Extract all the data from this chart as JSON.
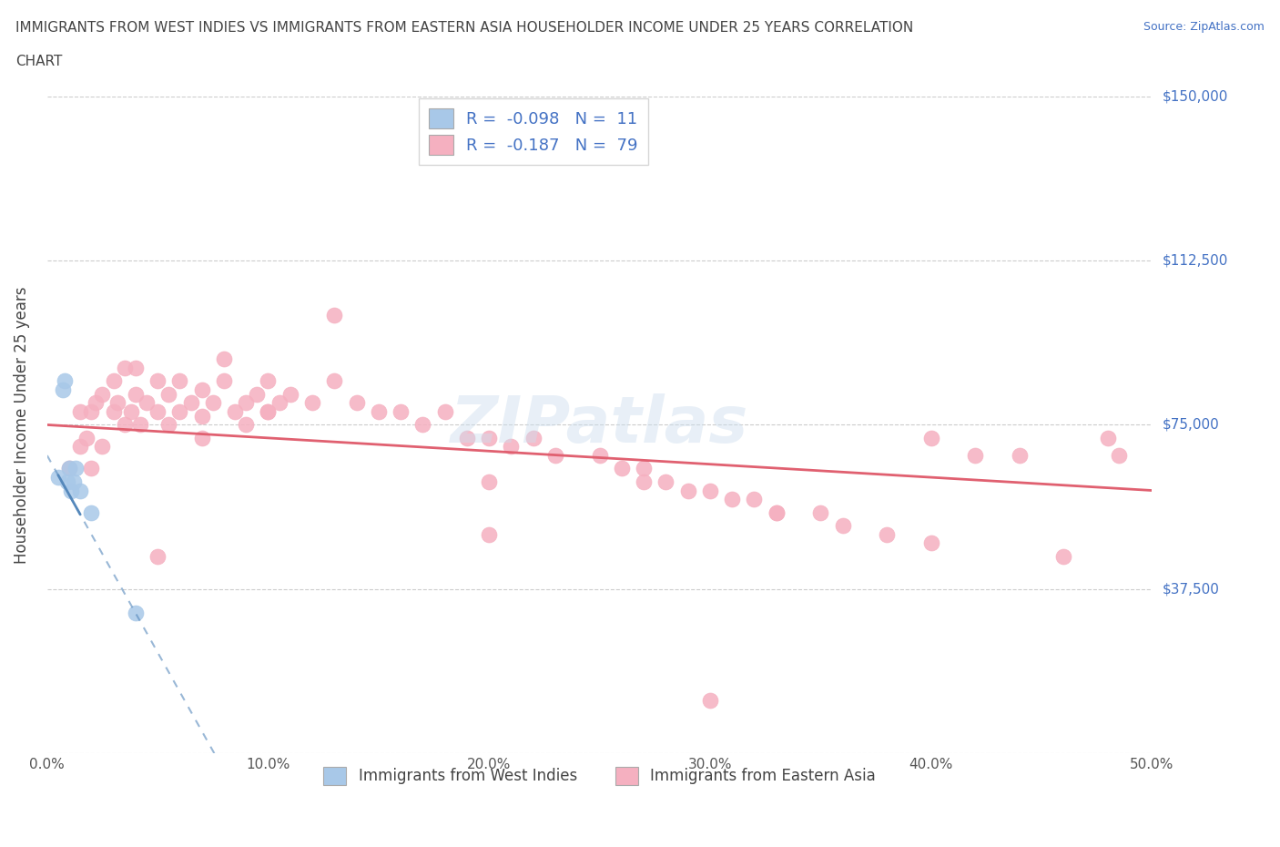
{
  "title_line1": "IMMIGRANTS FROM WEST INDIES VS IMMIGRANTS FROM EASTERN ASIA HOUSEHOLDER INCOME UNDER 25 YEARS CORRELATION",
  "title_line2": "CHART",
  "source": "Source: ZipAtlas.com",
  "ylabel": "Householder Income Under 25 years",
  "xlim": [
    0.0,
    0.5
  ],
  "ylim": [
    0,
    150000
  ],
  "yticks": [
    0,
    37500,
    75000,
    112500,
    150000
  ],
  "ytick_labels": [
    "",
    "$37,500",
    "$75,000",
    "$112,500",
    "$150,000"
  ],
  "xticks": [
    0.0,
    0.1,
    0.2,
    0.3,
    0.4,
    0.5
  ],
  "xtick_labels": [
    "0.0%",
    "10.0%",
    "20.0%",
    "30.0%",
    "40.0%",
    "50.0%"
  ],
  "grid_color": "#cccccc",
  "background_color": "#ffffff",
  "west_indies_color": "#a8c8e8",
  "east_asia_color": "#f5b0c0",
  "west_indies_R": -0.098,
  "west_indies_N": 11,
  "east_asia_R": -0.187,
  "east_asia_N": 79,
  "legend_label_1": "Immigrants from West Indies",
  "legend_label_2": "Immigrants from Eastern Asia",
  "wi_line_color": "#5588bb",
  "ea_line_color": "#e06070",
  "west_indies_x": [
    0.005,
    0.007,
    0.008,
    0.009,
    0.01,
    0.011,
    0.012,
    0.013,
    0.015,
    0.02,
    0.04
  ],
  "west_indies_y": [
    63000,
    83000,
    85000,
    62000,
    65000,
    60000,
    62000,
    65000,
    60000,
    55000,
    32000
  ],
  "east_asia_x": [
    0.01,
    0.015,
    0.015,
    0.018,
    0.02,
    0.02,
    0.022,
    0.025,
    0.025,
    0.03,
    0.03,
    0.032,
    0.035,
    0.035,
    0.038,
    0.04,
    0.04,
    0.042,
    0.045,
    0.05,
    0.05,
    0.055,
    0.055,
    0.06,
    0.06,
    0.065,
    0.07,
    0.07,
    0.075,
    0.08,
    0.08,
    0.085,
    0.09,
    0.09,
    0.095,
    0.1,
    0.1,
    0.105,
    0.11,
    0.12,
    0.13,
    0.14,
    0.15,
    0.16,
    0.17,
    0.18,
    0.19,
    0.2,
    0.21,
    0.22,
    0.23,
    0.25,
    0.26,
    0.27,
    0.28,
    0.29,
    0.3,
    0.31,
    0.32,
    0.33,
    0.35,
    0.36,
    0.38,
    0.4,
    0.42,
    0.44,
    0.46,
    0.48,
    0.485,
    0.13,
    0.2,
    0.27,
    0.33,
    0.4,
    0.2,
    0.1,
    0.07,
    0.05,
    0.3
  ],
  "east_asia_y": [
    65000,
    70000,
    78000,
    72000,
    78000,
    65000,
    80000,
    82000,
    70000,
    85000,
    78000,
    80000,
    88000,
    75000,
    78000,
    82000,
    88000,
    75000,
    80000,
    85000,
    78000,
    82000,
    75000,
    78000,
    85000,
    80000,
    83000,
    77000,
    80000,
    85000,
    90000,
    78000,
    80000,
    75000,
    82000,
    85000,
    78000,
    80000,
    82000,
    80000,
    85000,
    80000,
    78000,
    78000,
    75000,
    78000,
    72000,
    72000,
    70000,
    72000,
    68000,
    68000,
    65000,
    65000,
    62000,
    60000,
    60000,
    58000,
    58000,
    55000,
    55000,
    52000,
    50000,
    48000,
    68000,
    68000,
    45000,
    72000,
    68000,
    100000,
    62000,
    62000,
    55000,
    72000,
    50000,
    78000,
    72000,
    45000,
    12000
  ]
}
